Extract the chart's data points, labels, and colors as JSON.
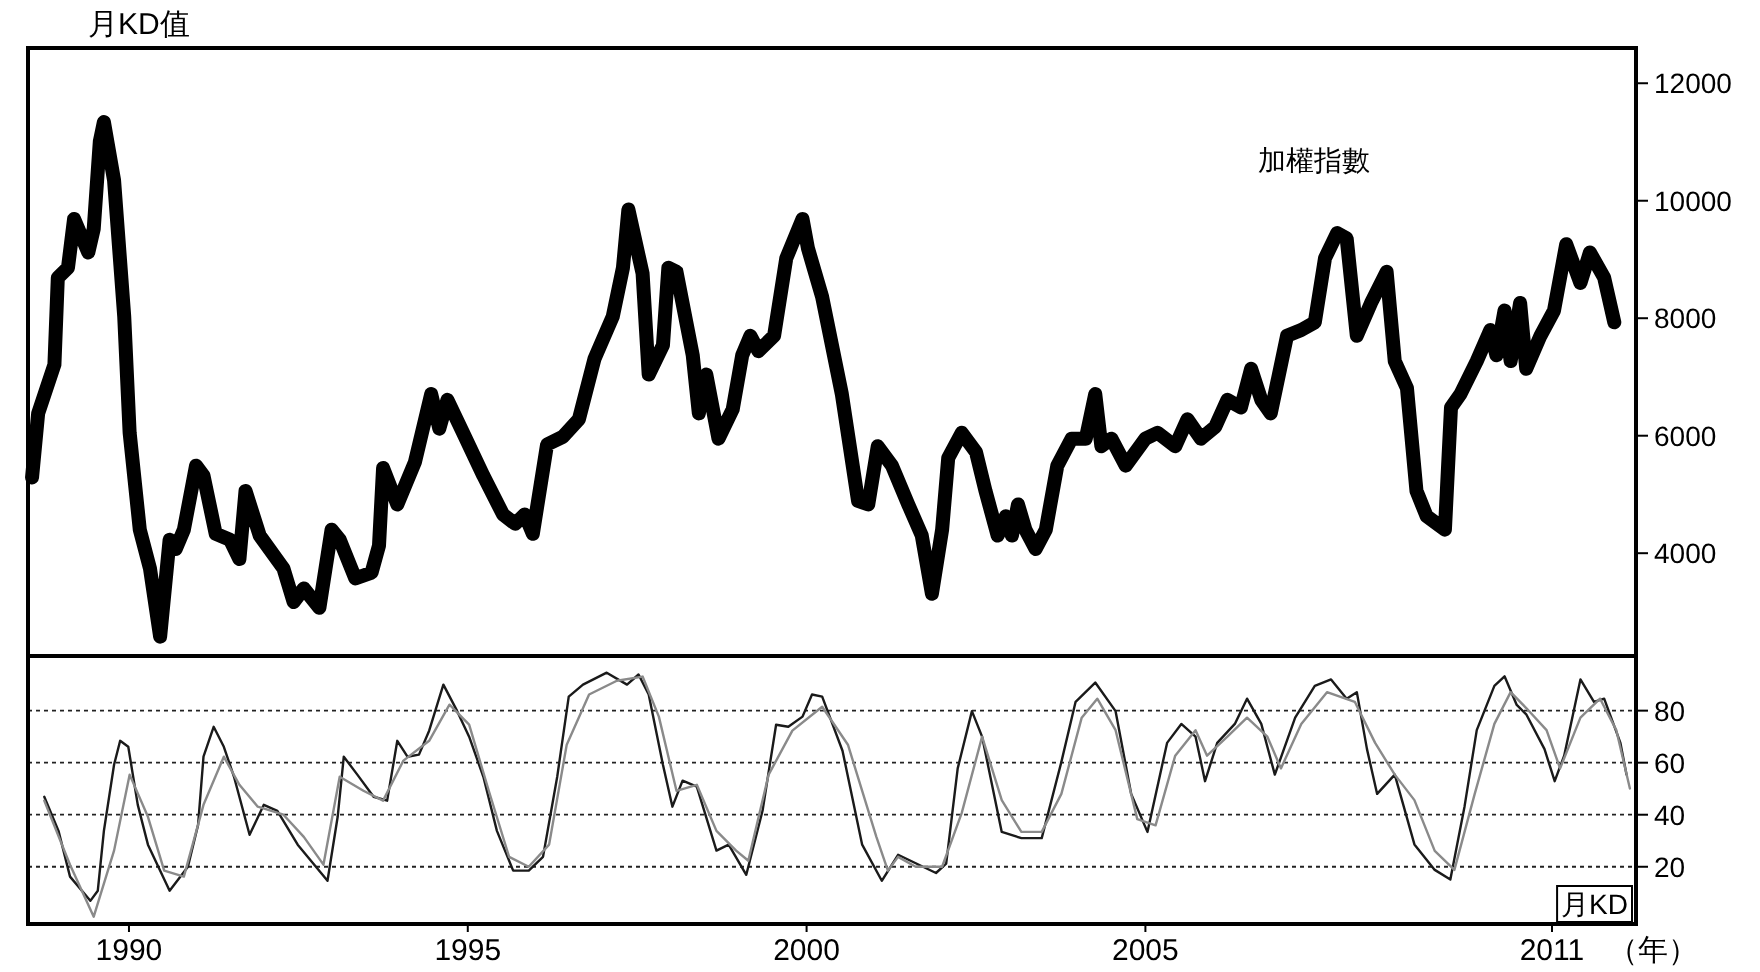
{
  "chart_data": [
    {
      "type": "line",
      "title": "月KD值",
      "tick_labels": "y",
      "xlim": [
        1988.51,
        2012.24
      ],
      "ylim": [
        2250,
        12600
      ],
      "yticks": [
        4000,
        6000,
        8000,
        10000,
        12000
      ],
      "x": [
        1988.57,
        1988.66,
        1988.9,
        1988.95,
        1989.1,
        1989.19,
        1989.4,
        1989.48,
        1989.57,
        1989.63,
        1989.78,
        1989.93,
        1990.01,
        1990.16,
        1990.31,
        1990.46,
        1990.6,
        1990.69,
        1990.81,
        1990.99,
        1991.1,
        1991.28,
        1991.49,
        1991.63,
        1991.72,
        1991.93,
        1992.28,
        1992.43,
        1992.58,
        1992.81,
        1992.99,
        1993.11,
        1993.34,
        1993.58,
        1993.69,
        1993.75,
        1993.96,
        1994.22,
        1994.46,
        1994.58,
        1994.7,
        1994.93,
        1995.23,
        1995.52,
        1995.7,
        1995.84,
        1995.96,
        1996.17,
        1996.4,
        1996.64,
        1996.87,
        1997.14,
        1997.29,
        1997.37,
        1997.58,
        1997.67,
        1997.88,
        1997.96,
        1998.08,
        1998.32,
        1998.41,
        1998.52,
        1998.7,
        1998.91,
        1999.05,
        1999.17,
        1999.29,
        1999.52,
        1999.7,
        1999.94,
        2000.02,
        2000.23,
        2000.52,
        2000.76,
        2000.91,
        2001.05,
        2001.26,
        2001.5,
        2001.7,
        2001.85,
        2002.0,
        2002.09,
        2002.29,
        2002.5,
        2002.64,
        2002.82,
        2002.94,
        2003.03,
        2003.12,
        2003.23,
        2003.38,
        2003.53,
        2003.7,
        2003.91,
        2004.12,
        2004.26,
        2004.35,
        2004.5,
        2004.71,
        2005.0,
        2005.18,
        2005.44,
        2005.62,
        2005.82,
        2006.03,
        2006.21,
        2006.41,
        2006.56,
        2006.71,
        2006.85,
        2007.09,
        2007.3,
        2007.5,
        2007.65,
        2007.83,
        2007.97,
        2008.12,
        2008.33,
        2008.56,
        2008.68,
        2008.86,
        2009.0,
        2009.15,
        2009.42,
        2009.51,
        2009.65,
        2009.89,
        2010.09,
        2010.18,
        2010.3,
        2010.39,
        2010.53,
        2010.62,
        2010.83,
        2011.03,
        2011.21,
        2011.42,
        2011.56,
        2011.77,
        2011.92
      ],
      "series": [
        {
          "name": "加權指數",
          "color": "#000000",
          "values": [
            5290,
            6380,
            7210,
            8690,
            8860,
            9690,
            9120,
            9520,
            11010,
            11340,
            10350,
            8030,
            6050,
            4400,
            3740,
            2580,
            4230,
            4070,
            4400,
            5490,
            5320,
            4330,
            4230,
            3900,
            5060,
            4300,
            3740,
            3170,
            3400,
            3070,
            4400,
            4230,
            3570,
            3670,
            4130,
            5450,
            4830,
            5550,
            6710,
            6120,
            6610,
            6050,
            5320,
            4660,
            4500,
            4660,
            4330,
            5850,
            5980,
            6280,
            7310,
            8030,
            8860,
            9850,
            8760,
            7040,
            7540,
            8860,
            8790,
            7370,
            6380,
            7040,
            5950,
            6450,
            7370,
            7700,
            7440,
            7700,
            9020,
            9690,
            9190,
            8360,
            6710,
            4890,
            4830,
            5820,
            5490,
            4830,
            4300,
            3310,
            4400,
            5620,
            6050,
            5720,
            5060,
            4300,
            4630,
            4300,
            4830,
            4400,
            4070,
            4400,
            5490,
            5950,
            5950,
            6710,
            5820,
            5950,
            5490,
            5950,
            6050,
            5820,
            6280,
            5950,
            6150,
            6610,
            6480,
            7140,
            6610,
            6380,
            7700,
            7800,
            7930,
            9020,
            9450,
            9360,
            7700,
            8260,
            8790,
            7270,
            6810,
            5060,
            4630,
            4400,
            6480,
            6710,
            7270,
            7800,
            7370,
            8130,
            7270,
            8260,
            7140,
            7700,
            8130,
            9260,
            8600,
            9120,
            8690,
            7930
          ]
        }
      ]
    },
    {
      "type": "line",
      "xlabel": "（年）",
      "annotations": [
        "月KD"
      ],
      "grid": "y",
      "xlim": [
        1988.51,
        2012.24
      ],
      "ylim": [
        -2,
        101
      ],
      "yticks": [
        20,
        40,
        60,
        80
      ],
      "xticks": [
        1990,
        1995,
        2000,
        2005,
        {
          "value": 2011,
          "label": "2011"
        }
      ],
      "series": [
        {
          "color": "#1a1a1a",
          "x": [
            1988.75,
            1988.96,
            1989.13,
            1989.43,
            1989.54,
            1989.63,
            1989.78,
            1989.87,
            1989.99,
            1990.13,
            1990.28,
            1990.6,
            1990.87,
            1991.02,
            1991.1,
            1991.25,
            1991.4,
            1991.55,
            1991.78,
            1991.99,
            1992.19,
            1992.49,
            1992.93,
            1993.08,
            1993.17,
            1993.37,
            1993.61,
            1993.81,
            1993.96,
            1994.11,
            1994.28,
            1994.43,
            1994.64,
            1994.84,
            1995.02,
            1995.23,
            1995.43,
            1995.67,
            1995.9,
            1996.11,
            1996.32,
            1996.49,
            1996.7,
            1997.05,
            1997.35,
            1997.52,
            1997.67,
            1997.88,
            1998.02,
            1998.17,
            1998.38,
            1998.67,
            1998.85,
            1999.11,
            1999.35,
            1999.55,
            1999.73,
            1999.94,
            2000.08,
            2000.23,
            2000.53,
            2000.82,
            2001.11,
            2001.35,
            2001.91,
            2002.06,
            2002.23,
            2002.44,
            2002.59,
            2002.88,
            2003.17,
            2003.47,
            2003.76,
            2003.97,
            2004.26,
            2004.56,
            2004.79,
            2005.03,
            2005.32,
            2005.53,
            2005.74,
            2005.88,
            2006.06,
            2006.32,
            2006.5,
            2006.71,
            2006.91,
            2007.21,
            2007.5,
            2007.74,
            2007.97,
            2008.12,
            2008.27,
            2008.42,
            2008.68,
            2008.97,
            2009.27,
            2009.5,
            2009.71,
            2009.89,
            2010.15,
            2010.3,
            2010.48,
            2010.62,
            2010.89,
            2011.04,
            2011.18,
            2011.42,
            2011.62,
            2011.77,
            2012.01,
            2012.1
          ],
          "values": [
            46.9,
            33.8,
            16.2,
            6.9,
            10.8,
            33.8,
            59.2,
            68.4,
            66.1,
            43.8,
            28.5,
            10.8,
            20,
            36.1,
            62.3,
            73.8,
            66.1,
            54.6,
            32.3,
            43.8,
            41.5,
            28.5,
            14.6,
            39.2,
            62.3,
            55.4,
            46.9,
            45.4,
            68.4,
            62.3,
            63.1,
            72.3,
            90,
            80,
            70,
            54.6,
            33.8,
            18.5,
            18.5,
            23.8,
            54.6,
            85.4,
            90,
            94.6,
            90,
            93.9,
            86.2,
            59.2,
            43.1,
            53.1,
            50.8,
            26.2,
            28.5,
            16.9,
            41.5,
            74.6,
            73.8,
            77.7,
            86.2,
            85.4,
            64.6,
            28.5,
            14.6,
            24.6,
            17.6,
            21.2,
            57.8,
            79.8,
            70,
            33.4,
            31,
            31,
            60.3,
            83.4,
            90.8,
            79.8,
            48,
            33.4,
            67.6,
            74.9,
            70,
            52.9,
            67.6,
            74.9,
            84.6,
            74.9,
            55.4,
            77.3,
            89.5,
            92,
            84.6,
            87.1,
            65.2,
            48,
            55.4,
            28.6,
            18.8,
            15.1,
            43.2,
            72.5,
            89.5,
            93.2,
            82.2,
            78.6,
            65.2,
            52.9,
            62.7,
            92,
            83.4,
            84.6,
            67.6,
            55.4
          ]
        },
        {
          "color": "#8a8a8a",
          "x": [
            1988.75,
            1989.13,
            1989.48,
            1989.78,
            1990.01,
            1990.28,
            1990.52,
            1990.81,
            1991.1,
            1991.4,
            1991.63,
            1991.9,
            1992.28,
            1992.58,
            1992.87,
            1993.11,
            1993.46,
            1993.75,
            1994.05,
            1994.43,
            1994.73,
            1995.02,
            1995.31,
            1995.61,
            1995.9,
            1996.2,
            1996.46,
            1996.79,
            1997.2,
            1997.58,
            1997.82,
            1998.08,
            1998.38,
            1998.67,
            1998.96,
            1999.14,
            1999.44,
            1999.79,
            2000.23,
            2000.61,
            2001.03,
            2001.2,
            2001.35,
            2001.61,
            2002.0,
            2002.29,
            2002.59,
            2002.88,
            2003.17,
            2003.47,
            2003.76,
            2004.06,
            2004.29,
            2004.56,
            2004.88,
            2005.15,
            2005.44,
            2005.74,
            2005.91,
            2006.21,
            2006.5,
            2006.8,
            2007.0,
            2007.3,
            2007.68,
            2008.09,
            2008.39,
            2008.68,
            2008.97,
            2009.27,
            2009.56,
            2009.86,
            2010.15,
            2010.39,
            2010.62,
            2010.92,
            2011.12,
            2011.42,
            2011.71,
            2011.95,
            2012.15
          ],
          "values": [
            45.4,
            20.8,
            0.8,
            26.2,
            55.4,
            39.2,
            18.5,
            16.2,
            43.8,
            62.3,
            51.5,
            43.1,
            40,
            31.5,
            20.8,
            54.6,
            49.2,
            45.4,
            60.8,
            68.4,
            82.3,
            74.6,
            49.2,
            23.8,
            20,
            28.5,
            66.9,
            86.2,
            91.5,
            93.1,
            77.7,
            49.2,
            51.5,
            33.8,
            26.2,
            22.3,
            55.4,
            72.3,
            81.5,
            66.9,
            31.5,
            18.5,
            23.8,
            20,
            20,
            40.7,
            70,
            45.6,
            33.4,
            33.4,
            48,
            77.3,
            84.6,
            72.5,
            38.3,
            35.9,
            62.7,
            72.5,
            62.7,
            70,
            77.3,
            70,
            57.8,
            74.9,
            87.1,
            83.4,
            67.6,
            55.4,
            45.6,
            26.1,
            18.8,
            48,
            74.9,
            87.1,
            81,
            72.5,
            57.8,
            77.3,
            84.6,
            72.5,
            50.1
          ]
        }
      ]
    }
  ]
}
